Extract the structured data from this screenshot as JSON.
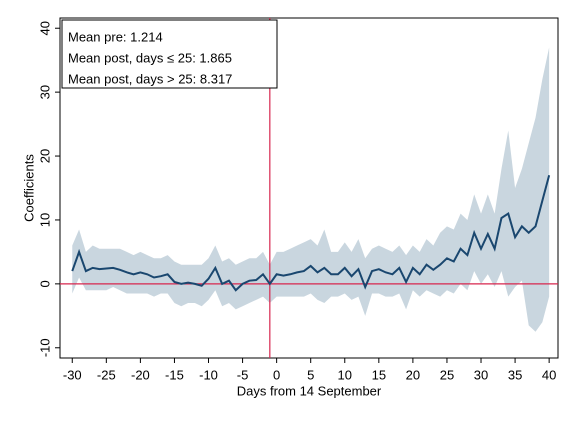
{
  "chart_data": {
    "type": "line",
    "x_label": "Days from 14 September",
    "y_label": "Coefficients",
    "annotations": [
      "Mean pre: 1.214",
      "Mean post, days ≤ 25: 1.865",
      "Mean post, days > 25: 8.317"
    ],
    "x": [
      -30,
      -29,
      -28,
      -27,
      -26,
      -25,
      -24,
      -23,
      -22,
      -21,
      -20,
      -19,
      -18,
      -17,
      -16,
      -15,
      -14,
      -13,
      -12,
      -11,
      -10,
      -9,
      -8,
      -7,
      -6,
      -5,
      -4,
      -3,
      -2,
      -1,
      0,
      1,
      2,
      3,
      4,
      5,
      6,
      7,
      8,
      9,
      10,
      11,
      12,
      13,
      14,
      15,
      16,
      17,
      18,
      19,
      20,
      21,
      22,
      23,
      24,
      25,
      26,
      27,
      28,
      29,
      30,
      31,
      32,
      33,
      34,
      35,
      36,
      37,
      38,
      39,
      40
    ],
    "values": [
      2,
      5,
      2,
      2.5,
      2.3,
      2.4,
      2.5,
      2.2,
      1.8,
      1.5,
      1.8,
      1.5,
      1,
      1.2,
      1.5,
      0.3,
      0,
      0.2,
      0,
      -0.3,
      0.8,
      2.5,
      0,
      0.5,
      -1,
      0,
      0.5,
      0.6,
      1.5,
      0,
      1.5,
      1.3,
      1.5,
      1.8,
      2,
      2.8,
      1.8,
      2.5,
      1.5,
      1.5,
      2.5,
      1.2,
      2.3,
      -0.5,
      2,
      2.3,
      1.8,
      1.5,
      2.5,
      0.3,
      2.5,
      1.5,
      3,
      2.2,
      3,
      4,
      3.5,
      5.5,
      4.5,
      8,
      5.5,
      7.8,
      5.5,
      10.3,
      11,
      7.3,
      9,
      8,
      9,
      13,
      17
    ],
    "upper": [
      6,
      8.5,
      5,
      6,
      5.5,
      5.5,
      5.5,
      5.5,
      5,
      4.5,
      5,
      4.5,
      4,
      4,
      4.5,
      3.5,
      3,
      3,
      3,
      3,
      4,
      6,
      3.5,
      4,
      3,
      3.5,
      4,
      4,
      5,
      3,
      5,
      5,
      5.5,
      6,
      6.5,
      7,
      6,
      8.5,
      5,
      5,
      6.5,
      5,
      7,
      4,
      5.5,
      6,
      5.5,
      5,
      6,
      4.5,
      6,
      5,
      7,
      6,
      8,
      9,
      8.5,
      11,
      10,
      14,
      11,
      14,
      11,
      18,
      24,
      15,
      18,
      22,
      26,
      32,
      37
    ],
    "lower": [
      -1.5,
      1,
      -1,
      -1,
      -1,
      -1,
      -0.5,
      -1,
      -1.5,
      -1.5,
      -1.5,
      -1.5,
      -2,
      -1.5,
      -1.5,
      -3,
      -3.5,
      -3,
      -3,
      -3.5,
      -2.5,
      -1,
      -3.5,
      -3,
      -4,
      -3.5,
      -3,
      -2.5,
      -2,
      -3,
      -2,
      -2,
      -2,
      -2,
      -2,
      -1.5,
      -2.5,
      -3,
      -2,
      -2,
      -1.5,
      -2.5,
      -2,
      -5,
      -1.5,
      -1.5,
      -2,
      -2,
      -1.5,
      -4,
      -1,
      -2,
      -1,
      -1.5,
      -2,
      -1,
      -1.5,
      0,
      -1,
      2,
      0,
      1.5,
      -0.5,
      2,
      -2,
      -0.5,
      0.5,
      -6.5,
      -7.5,
      -6,
      -2
    ],
    "color": "#1a476f",
    "band_color": "#c9d6df",
    "ref_color": "#d7264e",
    "vline": -1,
    "hline": 0,
    "xlim": [
      -31.8,
      41.3
    ],
    "ylim": [
      -11.6,
      41.6
    ],
    "xticks": [
      -30,
      -25,
      -20,
      -15,
      -10,
      -5,
      0,
      5,
      10,
      15,
      20,
      25,
      30,
      35,
      40
    ],
    "yticks": [
      -10,
      0,
      10,
      20,
      30,
      40
    ]
  }
}
